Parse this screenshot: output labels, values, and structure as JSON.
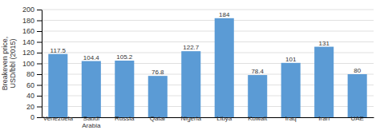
{
  "chart_data": {
    "type": "bar",
    "categories": [
      "Venezuela",
      "Saudi\nArabia",
      "Russia",
      "Qatar",
      "Nigeria",
      "Libya",
      "Kuwait",
      "Iraq",
      "Iran",
      "UAE"
    ],
    "values": [
      117.5,
      104.4,
      105.2,
      76.8,
      122.7,
      184,
      78.4,
      101,
      131,
      80
    ],
    "color": "#5b9bd5",
    "ylabel": "Breakeven price,\nUSD/bbl (2015)",
    "ylim": [
      0,
      200
    ],
    "yticks": [
      0,
      20,
      40,
      60,
      80,
      100,
      120,
      140,
      160,
      180,
      200
    ],
    "grid": true,
    "data_labels": true
  }
}
